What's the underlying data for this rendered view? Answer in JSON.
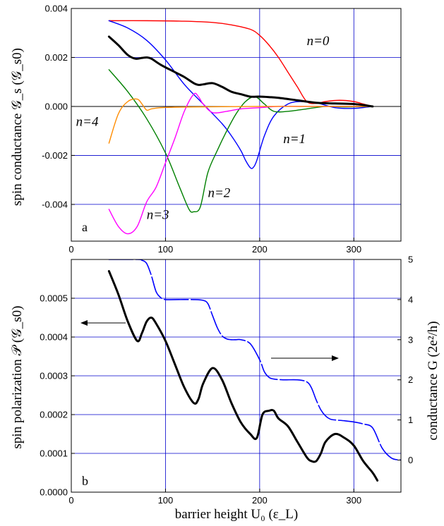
{
  "chart_data": [
    {
      "panel": "a",
      "type": "line",
      "ylabel": "spin conductance 𝒢_s (𝒢_s0)",
      "xlim": [
        0,
        350
      ],
      "ylim": [
        -0.0055,
        0.004
      ],
      "x_ticks": [
        "0",
        "100",
        "200",
        "300"
      ],
      "y_ticks": [
        "-0.004",
        "-0.002",
        "0.000",
        "0.002",
        "0.004"
      ],
      "grid": true,
      "series": [
        {
          "name": "n=0",
          "color": "#ff0000",
          "x": [
            40,
            80,
            120,
            150,
            170,
            190,
            200,
            210,
            220,
            230,
            240,
            250,
            260,
            270,
            285,
            300,
            310,
            320
          ],
          "y": [
            0.0035,
            0.0035,
            0.00348,
            0.00343,
            0.00333,
            0.00315,
            0.0029,
            0.0025,
            0.002,
            0.0014,
            0.0008,
            0.0002,
            0.00012,
            0.0002,
            0.00025,
            0.0002,
            0.0001,
            0.0
          ]
        },
        {
          "name": "n=1",
          "color": "#0000ff",
          "x": [
            40,
            60,
            80,
            100,
            120,
            140,
            160,
            170,
            180,
            185,
            190,
            193,
            197,
            205,
            215,
            230,
            245,
            260,
            280,
            300,
            320
          ],
          "y": [
            0.0035,
            0.0032,
            0.0027,
            0.0019,
            0.0009,
            0.0001,
            -0.0007,
            -0.0012,
            -0.0018,
            -0.0022,
            -0.0025,
            -0.0025,
            -0.0022,
            -0.0012,
            -0.0004,
            0.0001,
            0.0002,
            0.00015,
            -5e-05,
            -8e-05,
            0.0
          ]
        },
        {
          "name": "n=2",
          "color": "#008000",
          "x": [
            40,
            60,
            80,
            100,
            115,
            125,
            130,
            137,
            145,
            155,
            165,
            175,
            185,
            195,
            205,
            215,
            230,
            250,
            270,
            290,
            320
          ],
          "y": [
            0.0015,
            0.0006,
            -0.0005,
            -0.0019,
            -0.0033,
            -0.0042,
            -0.0043,
            -0.0041,
            -0.0027,
            -0.0018,
            -0.001,
            -0.0003,
            0.0002,
            0.0004,
            0.0001,
            -0.0002,
            -0.0002,
            -0.0001,
            0.0,
            -2e-05,
            0.0
          ]
        },
        {
          "name": "n=3",
          "color": "#ff00ff",
          "x": [
            40,
            50,
            60,
            70,
            80,
            90,
            100,
            110,
            120,
            130,
            135,
            140,
            150,
            165,
            180,
            200,
            220,
            250,
            280,
            320
          ],
          "y": [
            -0.0042,
            -0.0049,
            -0.0052,
            -0.0049,
            -0.0039,
            -0.0033,
            -0.0023,
            -0.0013,
            -0.0002,
            0.0005,
            0.0004,
            0.0001,
            -0.00025,
            -0.0002,
            -0.0001,
            -5e-05,
            0.0,
            0.0,
            0.0,
            0.0
          ]
        },
        {
          "name": "n=4",
          "color": "#ff8c00",
          "x": [
            40,
            50,
            60,
            70,
            75,
            80,
            85,
            95,
            110,
            130,
            160,
            200,
            250,
            320
          ],
          "y": [
            -0.0015,
            -0.0003,
            0.0002,
            0.0003,
            0.0001,
            -0.00015,
            -0.0001,
            -5e-05,
            -3e-05,
            -2e-05,
            -1e-05,
            0.0,
            0.0,
            0.0
          ]
        },
        {
          "name": "",
          "color": "#000000",
          "x": [
            40,
            50,
            60,
            68,
            75,
            80,
            85,
            95,
            110,
            120,
            130,
            135,
            140,
            150,
            160,
            170,
            180,
            190,
            200,
            210,
            220,
            240,
            260,
            280,
            300,
            320
          ],
          "y": [
            0.00285,
            0.0025,
            0.0021,
            0.00195,
            0.00198,
            0.002,
            0.00195,
            0.0017,
            0.0014,
            0.0012,
            0.00095,
            0.00088,
            0.0009,
            0.00095,
            0.0008,
            0.0006,
            0.0005,
            0.0004,
            0.0004,
            0.00038,
            0.00035,
            0.00025,
            0.00015,
            0.00012,
            0.0001,
            0.0
          ]
        }
      ],
      "annotations": [
        {
          "text": "n=0",
          "x": 250,
          "y": 0.0025
        },
        {
          "text": "n=1",
          "x": 225,
          "y": -0.0015
        },
        {
          "text": "n=2",
          "x": 145,
          "y": -0.0037
        },
        {
          "text": "n=3",
          "x": 80,
          "y": -0.0046
        },
        {
          "text": "n=4",
          "x": 5,
          "y": -0.0008
        }
      ],
      "panel_label": "a"
    },
    {
      "panel": "b",
      "type": "line",
      "xlabel": "barrier height U₀ (ε_L)",
      "ylabel": "spin polarization 𝒫 (𝒢_s0)",
      "ylabel_right": "conductance G (2e²/h)",
      "xlim": [
        0,
        350
      ],
      "ylim": [
        0.0,
        0.0006
      ],
      "ylim_right": [
        -0.8,
        5.0
      ],
      "x_ticks": [
        "0",
        "100",
        "200",
        "300"
      ],
      "y_ticks": [
        "0.0000",
        "0.0001",
        "0.0002",
        "0.0003",
        "0.0004",
        "0.0005"
      ],
      "y_ticks_right": [
        "0",
        "1",
        "2",
        "3",
        "4",
        "5"
      ],
      "grid": true,
      "series": [
        {
          "axis": "left",
          "color": "#000000",
          "x": [
            40,
            50,
            60,
            70,
            75,
            80,
            85,
            90,
            100,
            110,
            120,
            130,
            135,
            140,
            150,
            160,
            170,
            180,
            190,
            197,
            203,
            210,
            215,
            220,
            230,
            240,
            250,
            255,
            260,
            265,
            270,
            280,
            290,
            300,
            310,
            320,
            325
          ],
          "y": [
            0.00057,
            0.00051,
            0.00044,
            0.00039,
            0.00041,
            0.00044,
            0.00045,
            0.000435,
            0.00039,
            0.00033,
            0.00027,
            0.00023,
            0.00024,
            0.00028,
            0.00032,
            0.00029,
            0.00023,
            0.00018,
            0.00015,
            0.00014,
            0.0002,
            0.00021,
            0.00021,
            0.00019,
            0.00017,
            0.00013,
            9e-05,
            8e-05,
            8e-05,
            0.0001,
            0.00013,
            0.00015,
            0.00014,
            0.00012,
            8e-05,
            5e-05,
            3e-05
          ]
        },
        {
          "axis": "right",
          "color": "#0000ff",
          "dashed": true,
          "x": [
            40,
            70,
            75,
            80,
            85,
            90,
            95,
            100,
            110,
            130,
            140,
            145,
            150,
            155,
            160,
            165,
            170,
            175,
            180,
            190,
            200,
            205,
            210,
            215,
            225,
            240,
            250,
            255,
            260,
            265,
            270,
            275,
            280,
            290,
            300,
            310,
            320,
            330,
            340,
            350
          ],
          "y": [
            5.0,
            5.0,
            4.98,
            4.9,
            4.6,
            4.2,
            4.05,
            4.0,
            4.0,
            4.0,
            3.98,
            3.9,
            3.6,
            3.3,
            3.1,
            3.02,
            3.0,
            3.0,
            3.0,
            2.9,
            2.5,
            2.2,
            2.06,
            2.02,
            2.0,
            2.0,
            1.95,
            1.8,
            1.5,
            1.25,
            1.1,
            1.02,
            1.0,
            0.98,
            0.95,
            0.9,
            0.8,
            0.3,
            0.05,
            0.0
          ]
        }
      ],
      "panel_label": "b"
    }
  ]
}
